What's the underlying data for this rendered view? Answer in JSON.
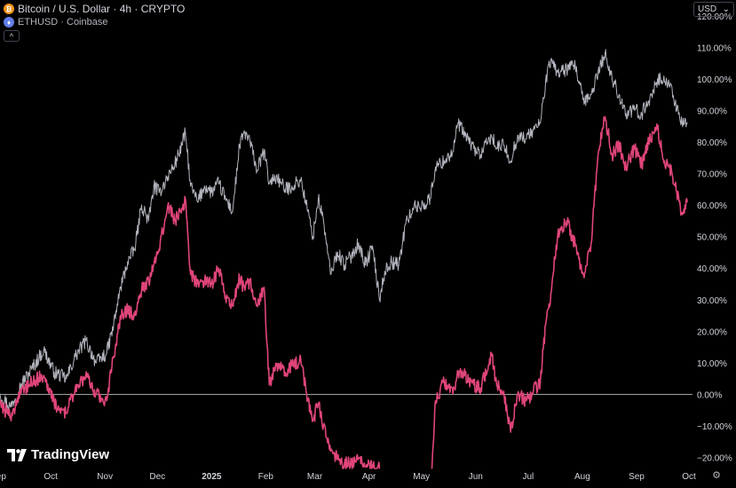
{
  "legend": {
    "main_symbol": {
      "icon": "bitcoin-icon",
      "icon_glyph": "₿",
      "icon_color": "#f7931a",
      "text": "Bitcoin / U.S. Dollar · 4h · CRYPTO"
    },
    "compare_symbol": {
      "icon": "ethereum-icon",
      "icon_glyph": "♦",
      "icon_color": "#627eea",
      "text": "ETHUSD · Coinbase"
    },
    "collapse_glyph": "^"
  },
  "currency": {
    "label": "USD",
    "arrow": "⌄"
  },
  "branding": {
    "logo_text": "TradingView",
    "logo_mark": "17"
  },
  "settings_glyph": "⚙",
  "colors": {
    "background": "#000000",
    "btc_line": "#b2b5be",
    "eth_line": "#e0457a",
    "zero_line": "#9aa0a6",
    "axis_text": "#d1d4dc"
  },
  "chart_data": {
    "type": "line",
    "title": "",
    "xlabel": "",
    "ylabel": "",
    "x_tick_labels": [
      "Sep",
      "Oct",
      "Nov",
      "Dec",
      "2025",
      "Feb",
      "Mar",
      "Apr",
      "May",
      "Jun",
      "Jul",
      "Aug",
      "Sep",
      "Oct"
    ],
    "x_tick_dates": [
      "2024-09-01",
      "2024-10-01",
      "2024-11-01",
      "2024-12-01",
      "2025-01-01",
      "2025-02-01",
      "2025-03-01",
      "2025-04-01",
      "2025-05-01",
      "2025-06-01",
      "2025-07-01",
      "2025-08-01",
      "2025-09-01",
      "2025-10-01"
    ],
    "xlim": [
      "2024-09-02",
      "2025-10-03"
    ],
    "y_tick_labels": [
      "120.00%",
      "110.00%",
      "100.00%",
      "90.00%",
      "80.00%",
      "70.00%",
      "60.00%",
      "50.00%",
      "40.00%",
      "30.00%",
      "20.00%",
      "10.00%",
      "0.00%",
      "−10.00%",
      "−20.00%"
    ],
    "y_ticks": [
      120,
      110,
      100,
      90,
      80,
      70,
      60,
      50,
      40,
      30,
      20,
      10,
      0,
      -10,
      -20
    ],
    "ylim": [
      -23.5,
      125
    ],
    "y_unit": "%",
    "baseline": 0,
    "series": [
      {
        "name": "Bitcoin / U.S. Dollar",
        "color": "#b2b5be",
        "points": [
          [
            "2024-09-02",
            0
          ],
          [
            "2024-09-08",
            -4
          ],
          [
            "2024-09-14",
            3
          ],
          [
            "2024-09-20",
            8
          ],
          [
            "2024-09-27",
            14
          ],
          [
            "2024-10-03",
            7
          ],
          [
            "2024-10-10",
            5
          ],
          [
            "2024-10-15",
            12
          ],
          [
            "2024-10-21",
            17
          ],
          [
            "2024-10-27",
            10
          ],
          [
            "2024-11-02",
            13
          ],
          [
            "2024-11-06",
            22
          ],
          [
            "2024-11-10",
            34
          ],
          [
            "2024-11-14",
            42
          ],
          [
            "2024-11-18",
            46
          ],
          [
            "2024-11-22",
            60
          ],
          [
            "2024-11-26",
            55
          ],
          [
            "2024-11-29",
            66
          ],
          [
            "2024-12-02",
            64
          ],
          [
            "2024-12-07",
            69
          ],
          [
            "2024-12-11",
            73
          ],
          [
            "2024-12-15",
            79
          ],
          [
            "2024-12-17",
            83
          ],
          [
            "2024-12-20",
            66
          ],
          [
            "2024-12-24",
            61
          ],
          [
            "2024-12-28",
            66
          ],
          [
            "2025-01-01",
            64
          ],
          [
            "2025-01-05",
            67
          ],
          [
            "2025-01-09",
            62
          ],
          [
            "2025-01-13",
            58
          ],
          [
            "2025-01-17",
            79
          ],
          [
            "2025-01-20",
            83
          ],
          [
            "2025-01-23",
            80
          ],
          [
            "2025-01-27",
            71
          ],
          [
            "2025-01-31",
            77
          ],
          [
            "2025-02-03",
            67
          ],
          [
            "2025-02-07",
            69
          ],
          [
            "2025-02-12",
            65
          ],
          [
            "2025-02-16",
            66
          ],
          [
            "2025-02-21",
            68
          ],
          [
            "2025-02-25",
            58
          ],
          [
            "2025-02-28",
            50
          ],
          [
            "2025-03-03",
            62
          ],
          [
            "2025-03-06",
            55
          ],
          [
            "2025-03-10",
            38
          ],
          [
            "2025-03-14",
            45
          ],
          [
            "2025-03-18",
            41
          ],
          [
            "2025-03-22",
            44
          ],
          [
            "2025-03-26",
            48
          ],
          [
            "2025-03-30",
            41
          ],
          [
            "2025-04-03",
            47
          ],
          [
            "2025-04-07",
            30
          ],
          [
            "2025-04-10",
            39
          ],
          [
            "2025-04-14",
            42
          ],
          [
            "2025-04-18",
            41
          ],
          [
            "2025-04-22",
            54
          ],
          [
            "2025-04-26",
            59
          ],
          [
            "2025-05-02",
            60
          ],
          [
            "2025-05-06",
            62
          ],
          [
            "2025-05-09",
            72
          ],
          [
            "2025-05-14",
            74
          ],
          [
            "2025-05-19",
            77
          ],
          [
            "2025-05-22",
            86
          ],
          [
            "2025-05-26",
            82
          ],
          [
            "2025-05-31",
            78
          ],
          [
            "2025-06-04",
            76
          ],
          [
            "2025-06-10",
            82
          ],
          [
            "2025-06-13",
            78
          ],
          [
            "2025-06-17",
            79
          ],
          [
            "2025-06-21",
            74
          ],
          [
            "2025-06-25",
            82
          ],
          [
            "2025-06-30",
            81
          ],
          [
            "2025-07-04",
            84
          ],
          [
            "2025-07-08",
            86
          ],
          [
            "2025-07-11",
            99
          ],
          [
            "2025-07-14",
            106
          ],
          [
            "2025-07-18",
            102
          ],
          [
            "2025-07-23",
            103
          ],
          [
            "2025-07-28",
            104
          ],
          [
            "2025-08-02",
            92
          ],
          [
            "2025-08-06",
            95
          ],
          [
            "2025-08-10",
            102
          ],
          [
            "2025-08-14",
            108
          ],
          [
            "2025-08-18",
            100
          ],
          [
            "2025-08-22",
            95
          ],
          [
            "2025-08-26",
            89
          ],
          [
            "2025-08-31",
            90
          ],
          [
            "2025-09-04",
            89
          ],
          [
            "2025-09-08",
            93
          ],
          [
            "2025-09-13",
            100
          ],
          [
            "2025-09-17",
            99
          ],
          [
            "2025-09-21",
            98
          ],
          [
            "2025-09-24",
            90
          ],
          [
            "2025-09-27",
            86
          ],
          [
            "2025-09-30",
            86
          ]
        ]
      },
      {
        "name": "ETHUSD",
        "color": "#e0457a",
        "points": [
          [
            "2024-09-02",
            -3
          ],
          [
            "2024-09-08",
            -7
          ],
          [
            "2024-09-14",
            0
          ],
          [
            "2024-09-20",
            4
          ],
          [
            "2024-09-27",
            6
          ],
          [
            "2024-10-03",
            -3
          ],
          [
            "2024-10-10",
            -6
          ],
          [
            "2024-10-15",
            2
          ],
          [
            "2024-10-21",
            6
          ],
          [
            "2024-10-27",
            0
          ],
          [
            "2024-11-02",
            -2
          ],
          [
            "2024-11-06",
            12
          ],
          [
            "2024-11-10",
            25
          ],
          [
            "2024-11-14",
            27
          ],
          [
            "2024-11-18",
            25
          ],
          [
            "2024-11-22",
            33
          ],
          [
            "2024-11-26",
            36
          ],
          [
            "2024-11-29",
            41
          ],
          [
            "2024-12-02",
            46
          ],
          [
            "2024-12-07",
            60
          ],
          [
            "2024-12-11",
            55
          ],
          [
            "2024-12-15",
            59
          ],
          [
            "2024-12-17",
            62
          ],
          [
            "2024-12-20",
            38
          ],
          [
            "2024-12-24",
            35
          ],
          [
            "2024-12-28",
            36
          ],
          [
            "2025-01-01",
            35
          ],
          [
            "2025-01-05",
            40
          ],
          [
            "2025-01-09",
            31
          ],
          [
            "2025-01-13",
            28
          ],
          [
            "2025-01-17",
            37
          ],
          [
            "2025-01-20",
            33
          ],
          [
            "2025-01-23",
            36
          ],
          [
            "2025-01-27",
            28
          ],
          [
            "2025-01-31",
            34
          ],
          [
            "2025-02-03",
            3
          ],
          [
            "2025-02-07",
            9
          ],
          [
            "2025-02-12",
            7
          ],
          [
            "2025-02-16",
            9
          ],
          [
            "2025-02-21",
            11
          ],
          [
            "2025-02-25",
            -2
          ],
          [
            "2025-02-28",
            -8
          ],
          [
            "2025-03-03",
            -3
          ],
          [
            "2025-03-06",
            -10
          ],
          [
            "2025-03-10",
            -18
          ],
          [
            "2025-03-14",
            -20
          ],
          [
            "2025-03-18",
            -22
          ],
          [
            "2025-03-22",
            -22
          ],
          [
            "2025-03-26",
            -20
          ],
          [
            "2025-03-30",
            -23
          ],
          [
            "2025-04-03",
            -22.5
          ],
          [
            "2025-04-07",
            -23.5
          ],
          null,
          [
            "2025-05-07",
            -23.5
          ],
          [
            "2025-05-09",
            -2
          ],
          [
            "2025-05-14",
            4
          ],
          [
            "2025-05-19",
            0
          ],
          [
            "2025-05-22",
            7
          ],
          [
            "2025-05-26",
            6
          ],
          [
            "2025-05-31",
            3
          ],
          [
            "2025-06-04",
            2
          ],
          [
            "2025-06-10",
            13
          ],
          [
            "2025-06-13",
            3
          ],
          [
            "2025-06-17",
            1
          ],
          [
            "2025-06-21",
            -12
          ],
          [
            "2025-06-25",
            0
          ],
          [
            "2025-06-30",
            -2
          ],
          [
            "2025-07-04",
            1
          ],
          [
            "2025-07-08",
            4
          ],
          [
            "2025-07-11",
            22
          ],
          [
            "2025-07-14",
            32
          ],
          [
            "2025-07-18",
            51
          ],
          [
            "2025-07-23",
            55
          ],
          [
            "2025-07-28",
            47
          ],
          [
            "2025-08-02",
            37
          ],
          [
            "2025-08-06",
            48
          ],
          [
            "2025-08-10",
            76
          ],
          [
            "2025-08-14",
            88
          ],
          [
            "2025-08-18",
            76
          ],
          [
            "2025-08-22",
            79
          ],
          [
            "2025-08-26",
            72
          ],
          [
            "2025-08-31",
            78
          ],
          [
            "2025-09-04",
            73
          ],
          [
            "2025-09-08",
            80
          ],
          [
            "2025-09-13",
            84
          ],
          [
            "2025-09-17",
            74
          ],
          [
            "2025-09-21",
            71
          ],
          [
            "2025-09-24",
            64
          ],
          [
            "2025-09-27",
            57
          ],
          [
            "2025-09-30",
            61
          ]
        ]
      }
    ],
    "grid": false,
    "legend_position": "top-left"
  }
}
